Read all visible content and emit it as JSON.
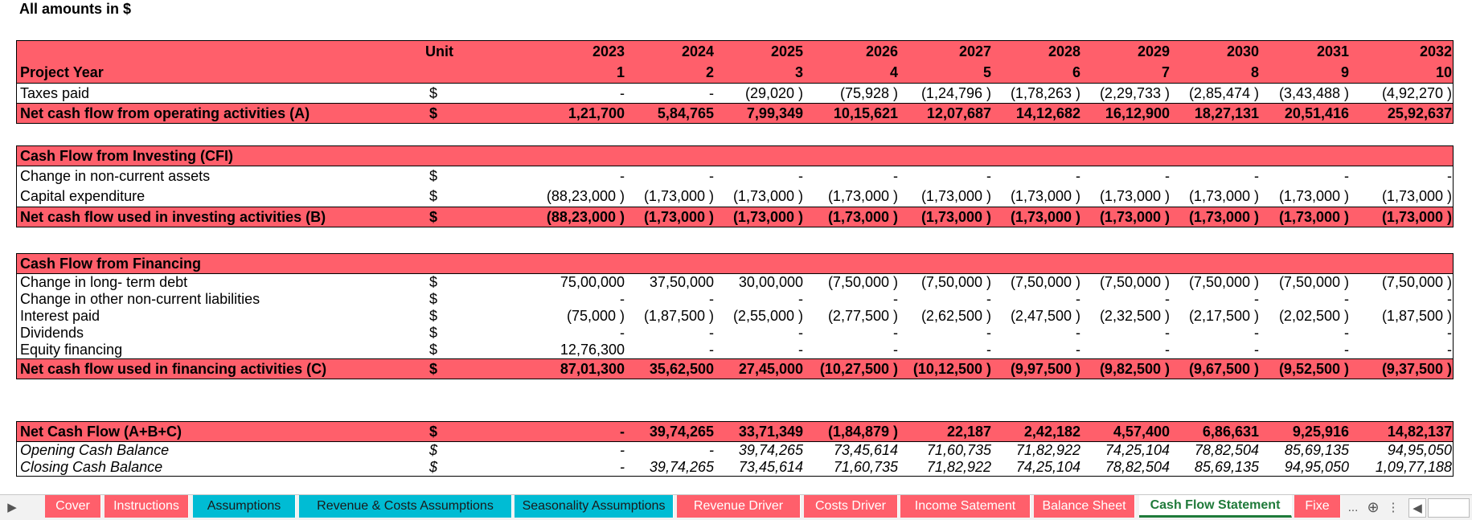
{
  "note": "All amounts in $",
  "header": {
    "unit_label": "Unit",
    "project_year_label": "Project Year",
    "years": [
      "2023",
      "2024",
      "2025",
      "2026",
      "2027",
      "2028",
      "2029",
      "2030",
      "2031",
      "2032"
    ],
    "project_years": [
      "1",
      "2",
      "3",
      "4",
      "5",
      "6",
      "7",
      "8",
      "9",
      "10"
    ]
  },
  "operating": [
    {
      "label": "Taxes paid",
      "unit": "$",
      "values": [
        "-",
        "-",
        "(29,020 )",
        "(75,928 )",
        "(1,24,796 )",
        "(1,78,263 )",
        "(2,29,733 )",
        "(2,85,474 )",
        "(3,43,488 )",
        "(4,92,270 )"
      ]
    },
    {
      "label": "Net cash flow from operating activities (A)",
      "unit": "$",
      "values": [
        "1,21,700",
        "5,84,765",
        "7,99,349",
        "10,15,621",
        "12,07,687",
        "14,12,682",
        "16,12,900",
        "18,27,131",
        "20,51,416",
        "25,92,637"
      ]
    }
  ],
  "investing": {
    "title": "Cash Flow from Investing (CFI)",
    "rows": [
      {
        "label": "Change in non-current assets",
        "unit": "$",
        "values": [
          "-",
          "-",
          "-",
          "-",
          "-",
          "-",
          "-",
          "-",
          "-",
          "-"
        ]
      },
      {
        "label": "Capital expenditure",
        "unit": "$",
        "values": [
          "(88,23,000 )",
          "(1,73,000 )",
          "(1,73,000 )",
          "(1,73,000 )",
          "(1,73,000 )",
          "(1,73,000 )",
          "(1,73,000 )",
          "(1,73,000 )",
          "(1,73,000 )",
          "(1,73,000 )"
        ]
      },
      {
        "label": "Net cash flow used in investing activities (B)",
        "unit": "$",
        "values": [
          "(88,23,000 )",
          "(1,73,000 )",
          "(1,73,000 )",
          "(1,73,000 )",
          "(1,73,000 )",
          "(1,73,000 )",
          "(1,73,000 )",
          "(1,73,000 )",
          "(1,73,000 )",
          "(1,73,000 )"
        ]
      }
    ]
  },
  "financing": {
    "title": "Cash Flow from Financing",
    "rows": [
      {
        "label": "Change in long- term debt",
        "unit": "$",
        "values": [
          "75,00,000",
          "37,50,000",
          "30,00,000",
          "(7,50,000 )",
          "(7,50,000 )",
          "(7,50,000 )",
          "(7,50,000 )",
          "(7,50,000 )",
          "(7,50,000 )",
          "(7,50,000 )"
        ]
      },
      {
        "label": "Change in other non-current liabilities",
        "unit": "$",
        "values": [
          "-",
          "-",
          "-",
          "-",
          "-",
          "-",
          "-",
          "-",
          "-",
          "-"
        ]
      },
      {
        "label": "Interest paid",
        "unit": "$",
        "values": [
          "(75,000 )",
          "(1,87,500 )",
          "(2,55,000 )",
          "(2,77,500 )",
          "(2,62,500 )",
          "(2,47,500 )",
          "(2,32,500 )",
          "(2,17,500 )",
          "(2,02,500 )",
          "(1,87,500 )"
        ]
      },
      {
        "label": "Dividends",
        "unit": "$",
        "values": [
          "-",
          "-",
          "-",
          "-",
          "-",
          "-",
          "-",
          "-",
          "-",
          "-"
        ]
      },
      {
        "label": "Equity financing",
        "unit": "$",
        "values": [
          "12,76,300",
          "-",
          "-",
          "-",
          "-",
          "-",
          "-",
          "-",
          "-",
          "-"
        ]
      },
      {
        "label": "Net cash flow used in financing activities (C)",
        "unit": "$",
        "values": [
          "87,01,300",
          "35,62,500",
          "27,45,000",
          "(10,27,500 )",
          "(10,12,500 )",
          "(9,97,500 )",
          "(9,82,500 )",
          "(9,67,500 )",
          "(9,52,500 )",
          "(9,37,500 )"
        ]
      }
    ]
  },
  "net": {
    "rows": [
      {
        "label": "Net Cash Flow (A+B+C)",
        "unit": "$",
        "values": [
          "-",
          "39,74,265",
          "33,71,349",
          "(1,84,879 )",
          "22,187",
          "2,42,182",
          "4,57,400",
          "6,86,631",
          "9,25,916",
          "14,82,137"
        ]
      },
      {
        "label": "Opening Cash Balance",
        "unit": "$",
        "values": [
          "-",
          "-",
          "39,74,265",
          "73,45,614",
          "71,60,735",
          "71,82,922",
          "74,25,104",
          "78,82,504",
          "85,69,135",
          "94,95,050"
        ]
      },
      {
        "label": "Closing Cash Balance",
        "unit": "$",
        "values": [
          "-",
          "39,74,265",
          "73,45,614",
          "71,60,735",
          "71,82,922",
          "74,25,104",
          "78,82,504",
          "85,69,135",
          "94,95,050",
          "1,09,77,188"
        ]
      }
    ]
  },
  "tabs": [
    {
      "label": "Cover",
      "color": "#ff5f6b"
    },
    {
      "label": "Instructions",
      "color": "#ff5f6b"
    },
    {
      "label": "Assumptions",
      "color": "#00bcd4"
    },
    {
      "label": "Revenue & Costs Assumptions",
      "color": "#00bcd4"
    },
    {
      "label": "Seasonality Assumptions",
      "color": "#00bcd4"
    },
    {
      "label": "Revenue Driver",
      "color": "#ff5f6b"
    },
    {
      "label": "Costs Driver",
      "color": "#ff5f6b"
    },
    {
      "label": "Income Satement",
      "color": "#ff5f6b"
    },
    {
      "label": "Balance Sheet",
      "color": "#ff5f6b"
    },
    {
      "label": "Cash Flow Statement",
      "color": "#ffffff",
      "active": true
    },
    {
      "label": "Fixe",
      "color": "#ff5f6b"
    }
  ],
  "tab_controls": {
    "more": "...",
    "add": "⊕",
    "menu": "⋮",
    "prev": "◀",
    "next": "▶"
  },
  "colors": {
    "header_fill": "#ff5f6b",
    "active_tab_text": "#1f7a3a"
  }
}
